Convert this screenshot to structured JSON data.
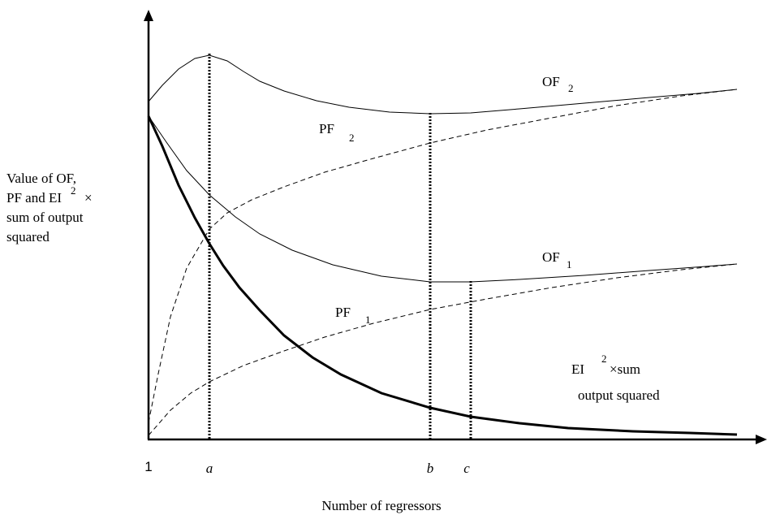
{
  "axis": {
    "y_title": [
      "Value of OF,",
      "PF and EI",
      "2",
      "×",
      "sum of output",
      "squared"
    ],
    "x_title": "Number of regressors",
    "x_marks": [
      "1",
      "a",
      "b",
      "c"
    ]
  },
  "curves": [
    {
      "name": "OF",
      "index": "2"
    },
    {
      "name": "PF",
      "index": "2"
    },
    {
      "name": "OF",
      "index": "1"
    },
    {
      "name": "PF",
      "index": "1"
    }
  ],
  "ei_label": {
    "name": "EI",
    "power": "2",
    "rest": "×sum",
    "line2": "output squared"
  }
}
